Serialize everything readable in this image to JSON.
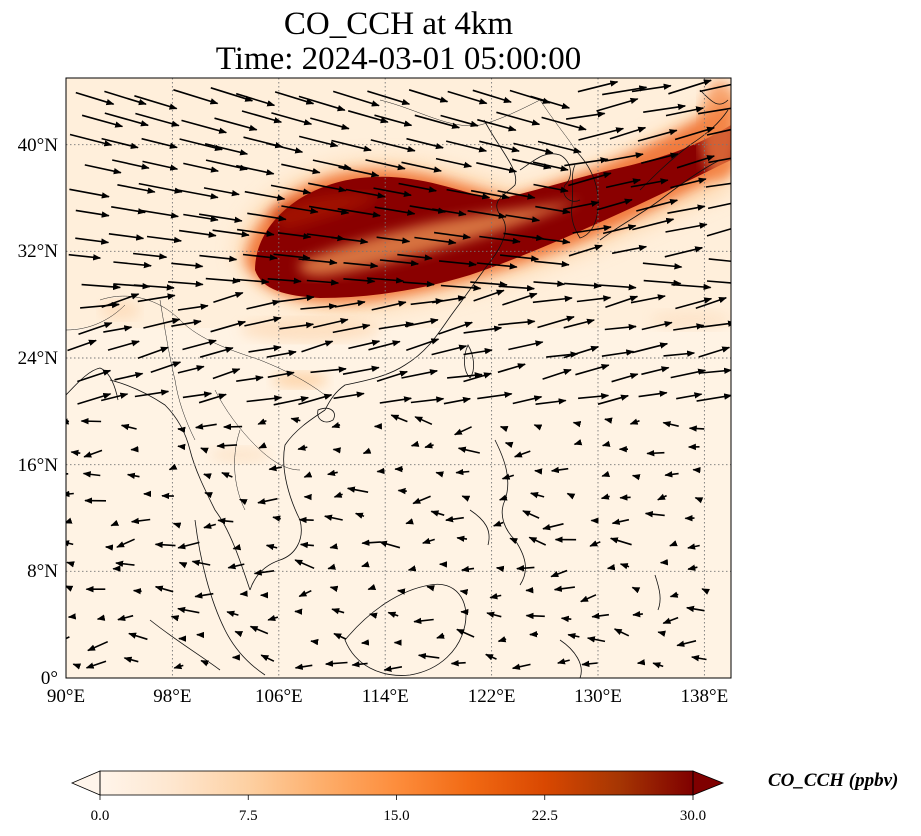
{
  "figure": {
    "title": "CO_CCH at 4km",
    "subtitle": "Time: 2024-03-01 05:00:00",
    "colorbar_label": "CO_CCH (ppbv)",
    "colormap": [
      "#fff5eb",
      "#fee6ce",
      "#fdd0a2",
      "#fdae6b",
      "#fd8d3c",
      "#f16913",
      "#d94801",
      "#a63603",
      "#7f0000"
    ]
  },
  "axes": {
    "lon_ticks": [
      "90°E",
      "98°E",
      "106°E",
      "114°E",
      "122°E",
      "130°E",
      "138°E"
    ],
    "lat_ticks": [
      "0°",
      "8°N",
      "16°N",
      "24°N",
      "32°N",
      "40°N"
    ],
    "lon_range": [
      90,
      140
    ],
    "lat_range": [
      0,
      45
    ],
    "gridlines": "dotted"
  },
  "colorbar": {
    "ticks": [
      "0.0",
      "7.5",
      "15.0",
      "22.5",
      "30.0"
    ],
    "range": [
      0,
      30
    ],
    "extend": "both"
  },
  "plume": {
    "max_value_ppbv": 30,
    "core_region": "East China / Yellow Sea to Korea and Japan, 28°N–38°N"
  },
  "wind": {
    "description": "westerly flow north of ~20°N, weak easterly flow in the tropics",
    "marker": "black arrows"
  }
}
